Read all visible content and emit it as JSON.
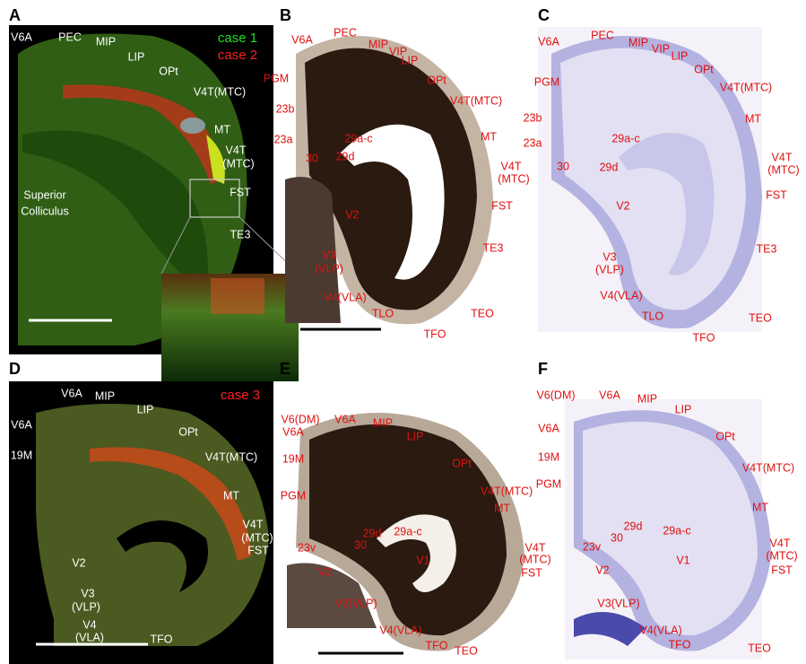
{
  "panels": [
    {
      "letter": "A",
      "legend": [
        "case 1",
        "case 2"
      ],
      "labels": [
        "V6A",
        "PEC",
        "MIP",
        "LIP",
        "OPt",
        "V4T(MTC)",
        "MT",
        "V4T",
        "(MTC)",
        "FST",
        "TE3",
        "Superior",
        "Colliculus"
      ]
    },
    {
      "letter": "B",
      "labels": [
        "V6A",
        "PEC",
        "MIP",
        "VIP",
        "LIP",
        "OPt",
        "V4T(MTC)",
        "PGM",
        "23b",
        "23a",
        "29a-c",
        "29d",
        "30",
        "MT",
        "V4T",
        "(MTC)",
        "FST",
        "V2",
        "TE3",
        "V3",
        "(VLP)",
        "V4(VLA)",
        "TLO",
        "TFO",
        "TEO"
      ]
    },
    {
      "letter": "C",
      "labels": [
        "V6A",
        "PEC",
        "MIP",
        "VIP",
        "LIP",
        "OPt",
        "V4T(MTC)",
        "PGM",
        "23b",
        "23a",
        "29a-c",
        "29d",
        "30",
        "MT",
        "V4T",
        "(MTC)",
        "FST",
        "V2",
        "TE3",
        "V3",
        "(VLP)",
        "V4(VLA)",
        "TLO",
        "TFO",
        "TEO"
      ]
    },
    {
      "letter": "D",
      "legend": [
        "case 3"
      ],
      "labels": [
        "V6A",
        "MIP",
        "LIP",
        "OPt",
        "V6A",
        "19M",
        "V4T(MTC)",
        "MT",
        "V4T",
        "(MTC)",
        "FST",
        "V2",
        "V3",
        "(VLP)",
        "V4",
        "(VLA)",
        "TFO"
      ]
    },
    {
      "letter": "E",
      "labels": [
        "V6(DM)",
        "V6A",
        "MIP",
        "LIP",
        "OPt",
        "V4T(MTC)",
        "V6A",
        "19M",
        "PGM",
        "MT",
        "V4T",
        "(MTC)",
        "FST",
        "29d",
        "29a-c",
        "30",
        "23v",
        "V1",
        "V2",
        "V3(VLP)",
        "V4(VLA)",
        "TFO",
        "TEO"
      ]
    },
    {
      "letter": "F",
      "labels": [
        "V6(DM)",
        "V6A",
        "MIP",
        "LIP",
        "OPt",
        "V4T(MTC)",
        "V6A",
        "19M",
        "PGM",
        "MT",
        "29d",
        "30",
        "29a-c",
        "23v",
        "V1",
        "V4T",
        "(MTC)",
        "FST",
        "V2",
        "V3(VLP)",
        "V4(VLA)",
        "TFO",
        "TEO"
      ]
    }
  ]
}
